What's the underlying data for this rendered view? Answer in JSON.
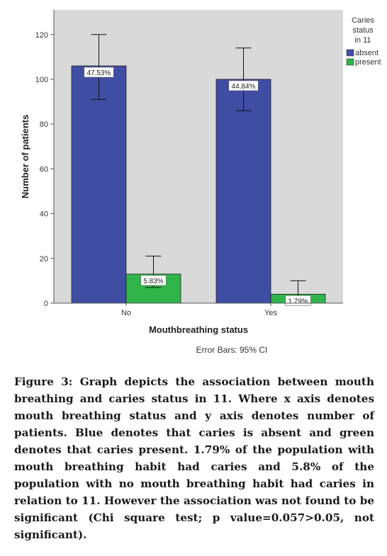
{
  "chart_data": {
    "type": "bar",
    "categories": [
      "No",
      "Yes"
    ],
    "series": [
      {
        "name": "absent",
        "color": "#3f4da3",
        "values": [
          106,
          100
        ],
        "ci_low": [
          91,
          86
        ],
        "ci_high": [
          120,
          114
        ],
        "labels": [
          "47.53%",
          "44.84%"
        ]
      },
      {
        "name": "present",
        "color": "#2fb54a",
        "values": [
          13,
          4
        ],
        "ci_low": [
          7,
          1
        ],
        "ci_high": [
          21,
          10
        ],
        "labels": [
          "5.83%",
          "1.79%"
        ]
      }
    ],
    "xlabel": "Mouthbreathing status",
    "ylabel": "Number of patients",
    "ylim": [
      0,
      120
    ],
    "yticks": [
      0,
      20,
      40,
      60,
      80,
      100,
      120
    ],
    "legend_title": "Caries status in 11",
    "legend_placement": "top-right",
    "note": "Error Bars: 95% CI",
    "plot_background": "#d9d9d9"
  },
  "caption": "Figure 3: Graph depicts the association between mouth breathing and caries status in 11. Where x axis denotes mouth breathing status and y axis denotes number of patients. Blue denotes that caries is absent and green denotes that caries present. 1.79% of the population with mouth breathing habit had caries and 5.8% of the population with no mouth breathing habit had caries in relation to 11. However the association was not found to be significant (Chi square test; p value=0.057>0.05, not significant)."
}
